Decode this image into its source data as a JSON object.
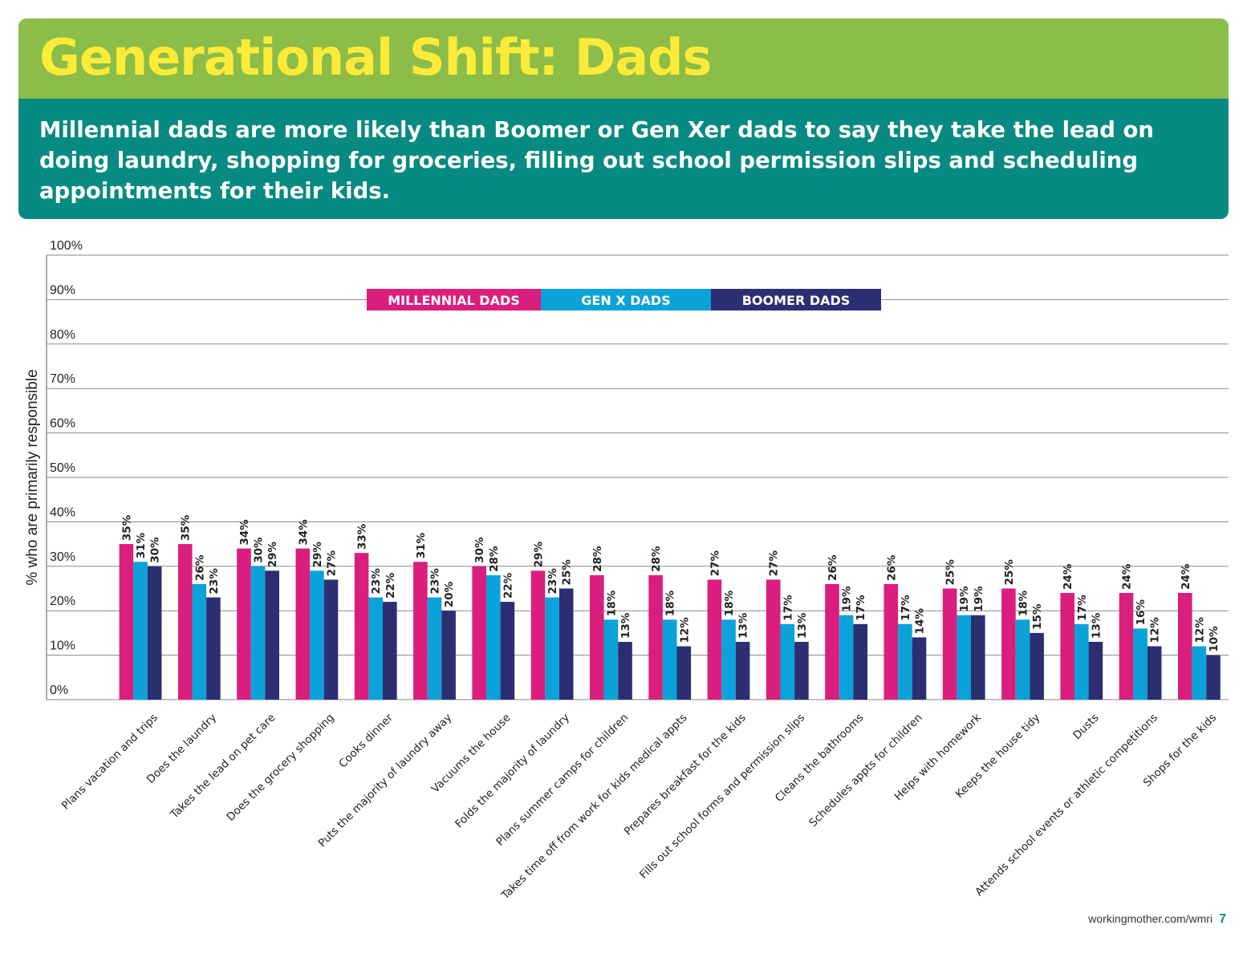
{
  "header": {
    "title": "Generational Shift: Dads",
    "subtitle": "Millennial dads are more likely than Boomer or Gen Xer dads to say they take the lead on doing laundry, shopping for groceries, filling out school permission slips and scheduling appointments for their kids."
  },
  "colors": {
    "title_band": "#8bbd48",
    "title_text": "#fdeb3a",
    "subtitle_band": "#078a82",
    "millennial": "#d91e7e",
    "genx": "#0aa2d9",
    "boomer": "#2b2f72"
  },
  "chart_data": {
    "type": "bar",
    "ylabel": "% who are primarily responsible",
    "ylim": [
      0,
      100
    ],
    "yticks": [
      "0%",
      "10%",
      "20%",
      "30%",
      "40%",
      "50%",
      "60%",
      "70%",
      "80%",
      "90%",
      "100%"
    ],
    "grid": true,
    "legend_position": "top-center",
    "categories": [
      "Plans vacation and trips",
      "Does the laundry",
      "Takes the lead on pet care",
      "Does the grocery shopping",
      "Cooks dinner",
      "Puts the majority of laundry away",
      "Vacuums the house",
      "Folds the majority of laundry",
      "Plans summer camps for children",
      "Takes time off from work for kids medical appts",
      "Prepares breakfast for the kids",
      "Fills out school forms and permission slips",
      "Cleans the bathrooms",
      "Schedules appts for children",
      "Helps with homework",
      "Keeps the house tidy",
      "Dusts",
      "Attends school events or athletic competitions",
      "Shops for the kids"
    ],
    "series": [
      {
        "name": "MILLENNIAL DADS",
        "values": [
          35,
          35,
          34,
          34,
          33,
          31,
          30,
          29,
          28,
          28,
          27,
          27,
          26,
          26,
          25,
          25,
          24,
          24,
          24
        ]
      },
      {
        "name": "GEN X DADS",
        "values": [
          31,
          26,
          30,
          29,
          23,
          23,
          28,
          23,
          18,
          18,
          18,
          17,
          19,
          17,
          19,
          18,
          17,
          16,
          12
        ]
      },
      {
        "name": "BOOMER DADS",
        "values": [
          30,
          23,
          29,
          27,
          22,
          20,
          22,
          25,
          13,
          12,
          13,
          13,
          17,
          14,
          19,
          15,
          13,
          12,
          10
        ]
      }
    ]
  },
  "footer": {
    "url": "workingmother.com/wmri",
    "page": "7"
  }
}
